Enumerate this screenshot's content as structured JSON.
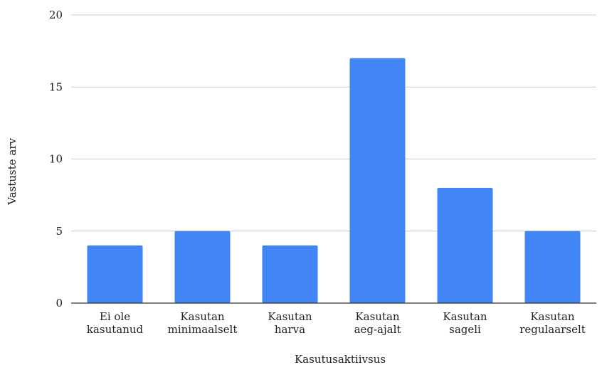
{
  "chart_data": {
    "type": "bar",
    "title": "",
    "xlabel": "Kasutusaktiivsus",
    "ylabel": "Vastuste arv",
    "categories": [
      [
        "Ei ole",
        "kasutanud"
      ],
      [
        "Kasutan",
        "minimaalselt"
      ],
      [
        "Kasutan",
        "harva"
      ],
      [
        "Kasutan",
        "aeg-ajalt"
      ],
      [
        "Kasutan",
        "sageli"
      ],
      [
        "Kasutan",
        "regulaarselt"
      ]
    ],
    "values": [
      4,
      5,
      4,
      17,
      8,
      5
    ],
    "ylim": [
      0,
      20
    ],
    "yticks": [
      0,
      5,
      10,
      15,
      20
    ],
    "grid": true,
    "legend": "none",
    "colors": {
      "bar": "#4285F4",
      "grid": "#cccccc",
      "axis": "#333333"
    }
  }
}
